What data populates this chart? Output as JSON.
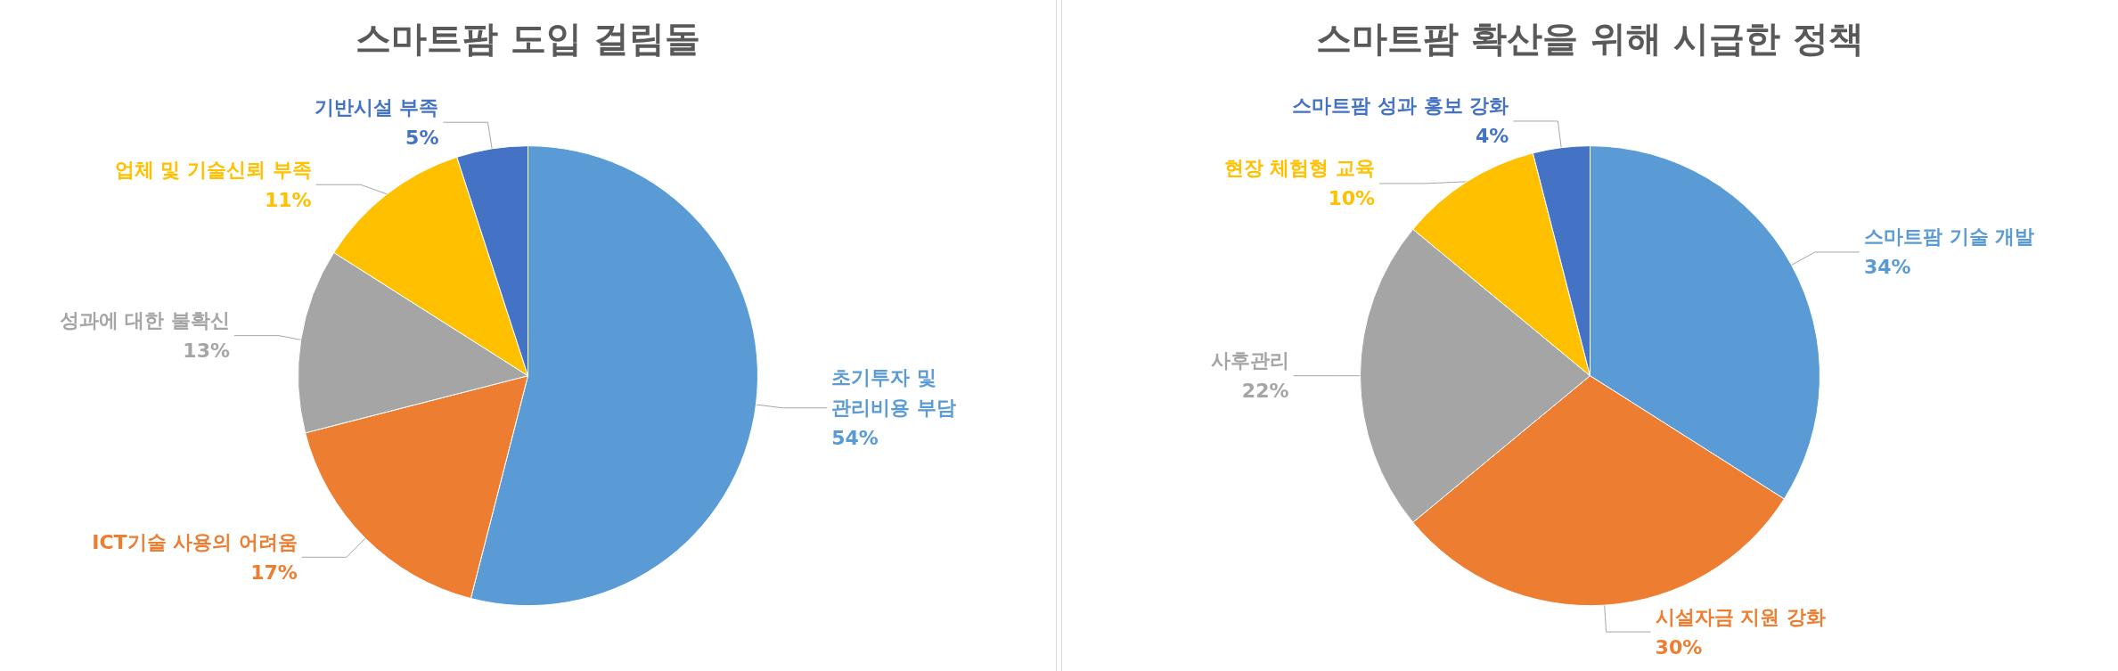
{
  "chart_data": [
    {
      "type": "pie",
      "title": "스마트팜 도입 걸림돌",
      "categories": [
        "초기투자 및\n관리비용 부담",
        "ICT기술 사용의 어려움",
        "성과에 대한 불확신",
        "업체 및 기술신뢰 부족",
        "기반시설 부족"
      ],
      "values": [
        54,
        17,
        13,
        11,
        5
      ],
      "value_labels": [
        "54%",
        "17%",
        "13%",
        "11%",
        "5%"
      ],
      "colors": [
        "#5b9bd5",
        "#ed7d31",
        "#a5a5a5",
        "#ffc000",
        "#4472c4"
      ],
      "legend": false
    },
    {
      "type": "pie",
      "title": "스마트팜 확산을 위해 시급한 정책",
      "categories": [
        "스마트팜 기술 개발",
        "시설자금 지원 강화",
        "사후관리",
        "현장 체험형 교육",
        "스마트팜 성과 홍보 강화"
      ],
      "values": [
        34,
        30,
        22,
        10,
        4
      ],
      "value_labels": [
        "34%",
        "30%",
        "22%",
        "10%",
        "4%"
      ],
      "colors": [
        "#5b9bd5",
        "#ed7d31",
        "#a5a5a5",
        "#ffc000",
        "#4472c4"
      ],
      "legend": false
    }
  ]
}
